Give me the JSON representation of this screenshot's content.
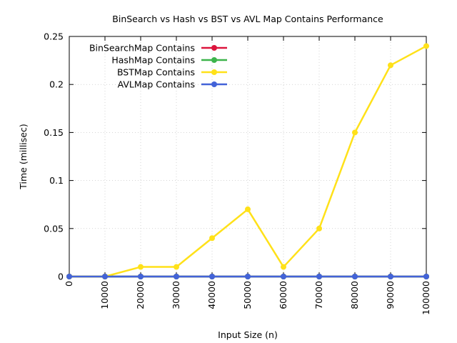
{
  "chart_data": {
    "type": "line",
    "title": "BinSearch vs Hash vs BST vs AVL Map Contains Performance",
    "xlabel": "Input Size (n)",
    "ylabel": "Time (millisec)",
    "xlim": [
      0,
      100000
    ],
    "ylim": [
      0,
      0.25
    ],
    "x_ticks": [
      "0",
      "10000",
      "20000",
      "30000",
      "40000",
      "50000",
      "60000",
      "70000",
      "80000",
      "90000",
      "100000"
    ],
    "y_ticks": [
      "0",
      "0.05",
      "0.1",
      "0.15",
      "0.2",
      "0.25"
    ],
    "grid": true,
    "legend_position": "top-left",
    "x": [
      0,
      10000,
      20000,
      30000,
      40000,
      50000,
      60000,
      70000,
      80000,
      90000,
      100000
    ],
    "series": [
      {
        "name": "BinSearchMap Contains",
        "color": "#dc143c",
        "values": [
          0,
          0,
          0,
          0,
          0,
          0,
          0,
          0,
          0,
          0,
          0
        ]
      },
      {
        "name": "HashMap Contains",
        "color": "#3cb44b",
        "values": [
          0,
          0,
          0,
          0,
          0,
          0,
          0,
          0,
          0,
          0,
          0
        ]
      },
      {
        "name": "BSTMap Contains",
        "color": "#ffe119",
        "values": [
          0,
          0,
          0.01,
          0.01,
          0.04,
          0.07,
          0.01,
          0.05,
          0.15,
          0.22,
          0.24
        ]
      },
      {
        "name": "AVLMap Contains",
        "color": "#4363d8",
        "values": [
          0,
          0,
          0,
          0,
          0,
          0,
          0,
          0,
          0,
          0,
          0
        ]
      }
    ]
  }
}
